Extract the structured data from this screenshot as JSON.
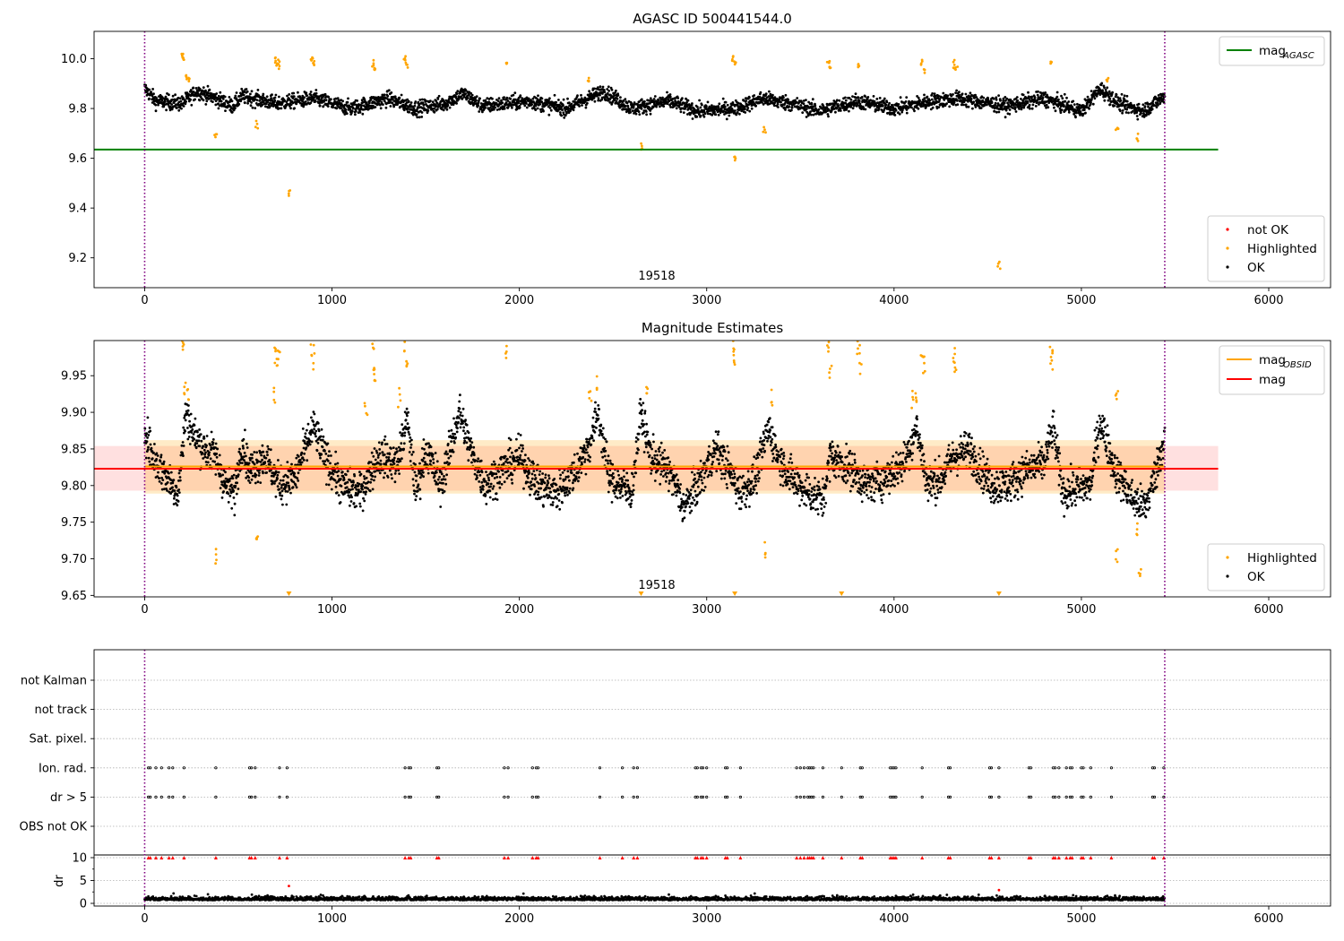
{
  "chart_data": [
    {
      "type": "scatter",
      "title": "AGASC ID 500441544.0",
      "xlim": [
        -270,
        6330
      ],
      "ylim": [
        9.08,
        10.11
      ],
      "xticks": [
        0,
        1000,
        2000,
        3000,
        4000,
        5000,
        6000
      ],
      "yticks": [
        9.2,
        9.4,
        9.6,
        9.8,
        10.0
      ],
      "ytick_labels": [
        "9.2",
        "9.4",
        "9.6",
        "9.8",
        "10.0"
      ],
      "vlines": [
        0,
        5445
      ],
      "annotation": {
        "text": "19518",
        "x": 2730
      },
      "hline": {
        "name": "mag",
        "subscript": "AGASC",
        "y": 9.635,
        "x_range": [
          -270,
          5730
        ],
        "color": "#008000"
      },
      "legend_lines": [
        {
          "name": "mag",
          "subscript": "AGASC",
          "color": "#008000"
        }
      ],
      "legend_points": [
        {
          "label": "not OK",
          "color": "#ff0000"
        },
        {
          "label": "Highlighted",
          "color": "#ffa500"
        },
        {
          "label": "OK",
          "color": "#000000"
        }
      ],
      "ok_trend": [
        [
          0,
          9.88
        ],
        [
          60,
          9.83
        ],
        [
          200,
          9.82
        ],
        [
          280,
          9.87
        ],
        [
          380,
          9.84
        ],
        [
          470,
          9.81
        ],
        [
          520,
          9.85
        ],
        [
          700,
          9.82
        ],
        [
          900,
          9.84
        ],
        [
          1100,
          9.8
        ],
        [
          1300,
          9.84
        ],
        [
          1450,
          9.8
        ],
        [
          1600,
          9.82
        ],
        [
          1700,
          9.86
        ],
        [
          1800,
          9.81
        ],
        [
          2050,
          9.83
        ],
        [
          2250,
          9.8
        ],
        [
          2450,
          9.87
        ],
        [
          2600,
          9.8
        ],
        [
          2800,
          9.83
        ],
        [
          2950,
          9.79
        ],
        [
          3150,
          9.8
        ],
        [
          3300,
          9.84
        ],
        [
          3450,
          9.82
        ],
        [
          3600,
          9.79
        ],
        [
          3800,
          9.83
        ],
        [
          4000,
          9.8
        ],
        [
          4200,
          9.83
        ],
        [
          4350,
          9.84
        ],
        [
          4600,
          9.81
        ],
        [
          4800,
          9.84
        ],
        [
          5000,
          9.79
        ],
        [
          5100,
          9.88
        ],
        [
          5200,
          9.82
        ],
        [
          5330,
          9.79
        ],
        [
          5445,
          9.85
        ]
      ],
      "ok_noise": 0.015,
      "highlighted": [
        [
          200,
          10.02
        ],
        [
          210,
          10.0
        ],
        [
          220,
          9.93
        ],
        [
          235,
          9.92
        ],
        [
          700,
          10.0
        ],
        [
          710,
          9.98
        ],
        [
          720,
          9.97
        ],
        [
          890,
          10.0
        ],
        [
          900,
          9.98
        ],
        [
          1220,
          9.98
        ],
        [
          1230,
          9.96
        ],
        [
          1390,
          10.0
        ],
        [
          1400,
          9.97
        ],
        [
          1930,
          9.98
        ],
        [
          2370,
          9.92
        ],
        [
          3140,
          10.0
        ],
        [
          3150,
          9.98
        ],
        [
          3650,
          9.99
        ],
        [
          3660,
          9.97
        ],
        [
          3810,
          9.98
        ],
        [
          4150,
          9.98
        ],
        [
          4160,
          9.95
        ],
        [
          4320,
          9.98
        ],
        [
          4330,
          9.96
        ],
        [
          4840,
          9.98
        ],
        [
          5140,
          9.92
        ],
        [
          380,
          9.7
        ],
        [
          600,
          9.73
        ],
        [
          770,
          9.46
        ],
        [
          2650,
          9.645
        ],
        [
          3150,
          9.6
        ],
        [
          3310,
          9.71
        ],
        [
          4560,
          9.17
        ],
        [
          5190,
          9.71
        ],
        [
          5300,
          9.68
        ]
      ],
      "not_ok": []
    },
    {
      "type": "scatter",
      "title": "Magnitude Estimates",
      "xlim": [
        -270,
        6330
      ],
      "ylim": [
        9.648,
        9.998
      ],
      "xticks": [
        0,
        1000,
        2000,
        3000,
        4000,
        5000,
        6000
      ],
      "yticks": [
        9.65,
        9.7,
        9.75,
        9.8,
        9.85,
        9.9,
        9.95
      ],
      "ytick_labels": [
        "9.65",
        "9.70",
        "9.75",
        "9.80",
        "9.85",
        "9.90",
        "9.95"
      ],
      "vlines": [
        0,
        5445
      ],
      "annotation": {
        "text": "19518",
        "x": 2730
      },
      "bands": [
        {
          "y0": 9.793,
          "y1": 9.854,
          "x_range": [
            -270,
            5730
          ],
          "color": "#ff0000",
          "opacity": 0.12
        },
        {
          "y0": 9.789,
          "y1": 9.862,
          "x_range": [
            0,
            5445
          ],
          "color": "#ffa500",
          "opacity": 0.22
        }
      ],
      "hlines": [
        {
          "name": "mag",
          "subscript": "OBSID",
          "y": 9.826,
          "x_range": [
            0,
            5445
          ],
          "color": "#ffa500"
        },
        {
          "name": "mag",
          "subscript": "",
          "y": 9.823,
          "x_range": [
            -270,
            5730
          ],
          "color": "#ff0000"
        }
      ],
      "legend_lines": [
        {
          "name": "mag",
          "subscript": "OBSID",
          "color": "#ffa500"
        },
        {
          "name": "mag",
          "subscript": "",
          "color": "#ff0000"
        }
      ],
      "legend_points": [
        {
          "label": "Highlighted",
          "color": "#ffa500"
        },
        {
          "label": "OK",
          "color": "#000000"
        }
      ],
      "ok_trend": [
        [
          0,
          9.88
        ],
        [
          40,
          9.84
        ],
        [
          120,
          9.81
        ],
        [
          180,
          9.79
        ],
        [
          220,
          9.9
        ],
        [
          260,
          9.87
        ],
        [
          320,
          9.85
        ],
        [
          380,
          9.84
        ],
        [
          430,
          9.8
        ],
        [
          480,
          9.79
        ],
        [
          520,
          9.86
        ],
        [
          560,
          9.82
        ],
        [
          640,
          9.84
        ],
        [
          720,
          9.8
        ],
        [
          800,
          9.81
        ],
        [
          900,
          9.88
        ],
        [
          960,
          9.84
        ],
        [
          1050,
          9.8
        ],
        [
          1150,
          9.79
        ],
        [
          1250,
          9.84
        ],
        [
          1350,
          9.83
        ],
        [
          1400,
          9.89
        ],
        [
          1450,
          9.79
        ],
        [
          1500,
          9.85
        ],
        [
          1580,
          9.8
        ],
        [
          1680,
          9.9
        ],
        [
          1750,
          9.84
        ],
        [
          1820,
          9.8
        ],
        [
          1900,
          9.82
        ],
        [
          2000,
          9.84
        ],
        [
          2100,
          9.8
        ],
        [
          2200,
          9.79
        ],
        [
          2300,
          9.82
        ],
        [
          2380,
          9.86
        ],
        [
          2420,
          9.9
        ],
        [
          2480,
          9.81
        ],
        [
          2600,
          9.79
        ],
        [
          2650,
          9.9
        ],
        [
          2700,
          9.84
        ],
        [
          2800,
          9.82
        ],
        [
          2880,
          9.77
        ],
        [
          2950,
          9.8
        ],
        [
          3050,
          9.85
        ],
        [
          3100,
          9.83
        ],
        [
          3180,
          9.79
        ],
        [
          3260,
          9.81
        ],
        [
          3330,
          9.88
        ],
        [
          3380,
          9.84
        ],
        [
          3450,
          9.81
        ],
        [
          3550,
          9.79
        ],
        [
          3620,
          9.78
        ],
        [
          3660,
          9.84
        ],
        [
          3780,
          9.82
        ],
        [
          3850,
          9.8
        ],
        [
          3950,
          9.81
        ],
        [
          4050,
          9.83
        ],
        [
          4120,
          9.88
        ],
        [
          4180,
          9.8
        ],
        [
          4250,
          9.81
        ],
        [
          4320,
          9.84
        ],
        [
          4400,
          9.85
        ],
        [
          4520,
          9.8
        ],
        [
          4600,
          9.8
        ],
        [
          4700,
          9.82
        ],
        [
          4800,
          9.83
        ],
        [
          4850,
          9.88
        ],
        [
          4900,
          9.79
        ],
        [
          5050,
          9.8
        ],
        [
          5100,
          9.89
        ],
        [
          5180,
          9.82
        ],
        [
          5280,
          9.78
        ],
        [
          5340,
          9.77
        ],
        [
          5400,
          9.82
        ],
        [
          5445,
          9.87
        ]
      ],
      "ok_noise": 0.013,
      "highlighted": [
        [
          200,
          9.99
        ],
        [
          210,
          9.995
        ],
        [
          215,
          9.93
        ],
        [
          230,
          9.92
        ],
        [
          700,
          9.99
        ],
        [
          705,
          9.97
        ],
        [
          715,
          9.98
        ],
        [
          890,
          9.99
        ],
        [
          900,
          9.97
        ],
        [
          1220,
          9.99
        ],
        [
          1225,
          9.96
        ],
        [
          1230,
          9.95
        ],
        [
          1390,
          9.99
        ],
        [
          1400,
          9.96
        ],
        [
          1930,
          9.98
        ],
        [
          2380,
          9.92
        ],
        [
          2410,
          9.94
        ],
        [
          2680,
          9.93
        ],
        [
          3140,
          9.99
        ],
        [
          3145,
          9.97
        ],
        [
          3350,
          9.92
        ],
        [
          3650,
          9.99
        ],
        [
          3660,
          9.96
        ],
        [
          3810,
          9.99
        ],
        [
          3820,
          9.97
        ],
        [
          4120,
          9.92
        ],
        [
          4150,
          9.98
        ],
        [
          4160,
          9.96
        ],
        [
          4320,
          9.98
        ],
        [
          4330,
          9.96
        ],
        [
          4840,
          9.98
        ],
        [
          4845,
          9.97
        ],
        [
          5190,
          9.92
        ],
        [
          380,
          9.7
        ],
        [
          600,
          9.73
        ],
        [
          3310,
          9.705
        ],
        [
          5190,
          9.71
        ],
        [
          5300,
          9.735
        ],
        [
          5310,
          9.678
        ],
        [
          690,
          9.925
        ],
        [
          1180,
          9.9
        ],
        [
          1360,
          9.92
        ],
        [
          4100,
          9.92
        ]
      ],
      "highlighted_clipped_x": [
        770,
        2650,
        3150,
        3720,
        4560
      ],
      "not_ok": []
    },
    {
      "type": "scatter",
      "title": "",
      "xlim": [
        -270,
        6330
      ],
      "xticks": [
        0,
        1000,
        2000,
        3000,
        4000,
        5000,
        6000
      ],
      "vlines": [
        0,
        5445
      ],
      "flag_labels": [
        "OBS not OK",
        "dr > 5",
        "Ion. rad.",
        "Sat. pixel.",
        "not track",
        "not Kalman"
      ],
      "flag_events_x": [
        20,
        30,
        60,
        90,
        130,
        150,
        210,
        380,
        560,
        570,
        590,
        720,
        760,
        1390,
        1410,
        1420,
        1560,
        1570,
        1920,
        1940,
        2070,
        2090,
        2100,
        2430,
        2550,
        2610,
        2630,
        2940,
        2950,
        2970,
        2980,
        3000,
        3100,
        3110,
        3180,
        3480,
        3500,
        3520,
        3540,
        3550,
        3560,
        3570,
        3620,
        3720,
        3820,
        3830,
        3980,
        3990,
        4000,
        4010,
        4150,
        4290,
        4300,
        4510,
        4520,
        4560,
        4720,
        4730,
        4850,
        4860,
        4880,
        4920,
        4940,
        4950,
        5000,
        5010,
        5050,
        5160,
        5380,
        5390,
        5440
      ],
      "flag_rows": {
        "dr > 5": true,
        "Ion. rad.": true
      },
      "dr_ylabel": "dr",
      "dr_yticks": [
        0,
        5,
        10
      ],
      "dr_ylim": [
        -0.8,
        10.8
      ],
      "dr_baseline": 0.7,
      "dr_outliers": [
        [
          770,
          3.8
        ],
        [
          4560,
          2.9
        ]
      ],
      "dr_capped_value": 10
    }
  ]
}
